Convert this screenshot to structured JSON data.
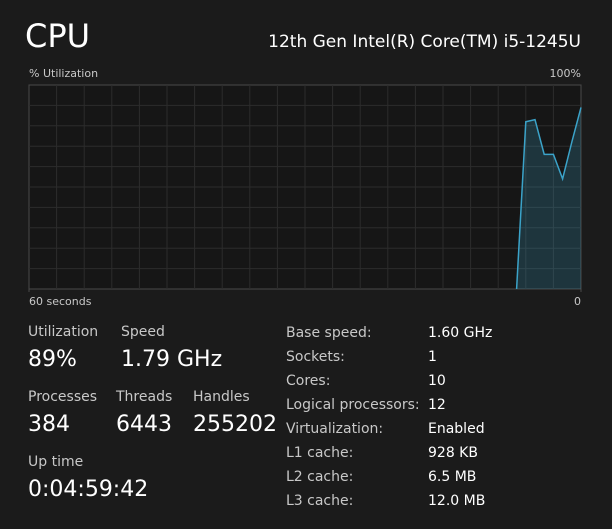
{
  "header": {
    "title": "CPU",
    "processor": "12th Gen Intel(R) Core(TM) i5-1245U"
  },
  "chart_data": {
    "type": "line",
    "ylabel": "% Utilization",
    "x": [
      7,
      6,
      5,
      4,
      3,
      2,
      1,
      0
    ],
    "values": [
      0,
      82,
      83,
      66,
      66,
      54,
      72,
      89
    ],
    "xlim": [
      60,
      0
    ],
    "xticks": [
      {
        "value": 60,
        "label": "60 seconds"
      },
      0
    ],
    "ylim": [
      0,
      100
    ],
    "yticks": [
      {
        "value": 100,
        "label": "100%"
      }
    ],
    "color": "#3ba3c9",
    "grid": true
  },
  "stats": [
    {
      "label": "Utilization",
      "value": "89%"
    },
    {
      "label": "Speed",
      "value": "1.79 GHz"
    },
    {
      "label": "Processes",
      "value": "384"
    },
    {
      "label": "Threads",
      "value": "6443"
    },
    {
      "label": "Handles",
      "value": "255202"
    },
    {
      "label": "Up time",
      "value": "0:04:59:42"
    }
  ],
  "details": [
    [
      "Base speed:",
      "1.60 GHz"
    ],
    [
      "Sockets:",
      "1"
    ],
    [
      "Cores:",
      "10"
    ],
    [
      "Logical processors:",
      "12"
    ],
    [
      "Virtualization:",
      "Enabled"
    ],
    [
      "L1 cache:",
      "928 KB"
    ],
    [
      "L2 cache:",
      "6.5 MB"
    ],
    [
      "L3 cache:",
      "12.0 MB"
    ]
  ]
}
